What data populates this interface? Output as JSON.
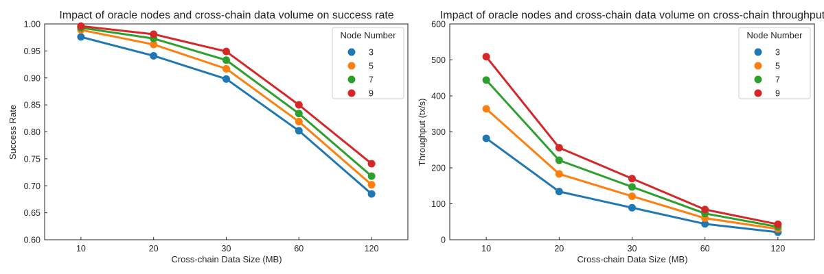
{
  "chart_data": [
    {
      "type": "line",
      "title": "Impact of oracle nodes and cross-chain data volume on success rate",
      "xlabel": "Cross-chain Data Size (MB)",
      "ylabel": "Success Rate",
      "categories": [
        "10",
        "20",
        "30",
        "60",
        "120"
      ],
      "ylim": [
        0.6,
        1.0
      ],
      "yticks": [
        "0.60",
        "0.65",
        "0.70",
        "0.75",
        "0.80",
        "0.85",
        "0.90",
        "0.95",
        "1.00"
      ],
      "legend": {
        "title": "Node Number",
        "placement": "top-right"
      },
      "grid": false,
      "series": [
        {
          "name": "3",
          "color": "#1f77b4",
          "values": [
            0.976,
            0.941,
            0.898,
            0.802,
            0.685
          ]
        },
        {
          "name": "5",
          "color": "#ff7f0e",
          "values": [
            0.989,
            0.962,
            0.917,
            0.819,
            0.702
          ]
        },
        {
          "name": "7",
          "color": "#2ca02c",
          "values": [
            0.993,
            0.973,
            0.933,
            0.834,
            0.718
          ]
        },
        {
          "name": "9",
          "color": "#d62728",
          "values": [
            0.996,
            0.981,
            0.949,
            0.85,
            0.741
          ]
        }
      ]
    },
    {
      "type": "line",
      "title": "Impact of oracle nodes and cross-chain data volume on cross-chain throughput",
      "xlabel": "Cross-chain Data Size (MB)",
      "ylabel": "Throughput (tx/s)",
      "categories": [
        "10",
        "20",
        "30",
        "60",
        "120"
      ],
      "ylim": [
        0,
        600
      ],
      "yticks": [
        "0",
        "100",
        "200",
        "300",
        "400",
        "500",
        "600"
      ],
      "legend": {
        "title": "Node Number",
        "placement": "top-right"
      },
      "grid": false,
      "series": [
        {
          "name": "3",
          "color": "#1f77b4",
          "values": [
            282,
            134,
            89,
            44,
            21
          ]
        },
        {
          "name": "5",
          "color": "#ff7f0e",
          "values": [
            364,
            183,
            121,
            60,
            30
          ]
        },
        {
          "name": "7",
          "color": "#2ca02c",
          "values": [
            444,
            221,
            147,
            73,
            36
          ]
        },
        {
          "name": "9",
          "color": "#d62728",
          "values": [
            509,
            256,
            170,
            84,
            43
          ]
        }
      ]
    }
  ]
}
